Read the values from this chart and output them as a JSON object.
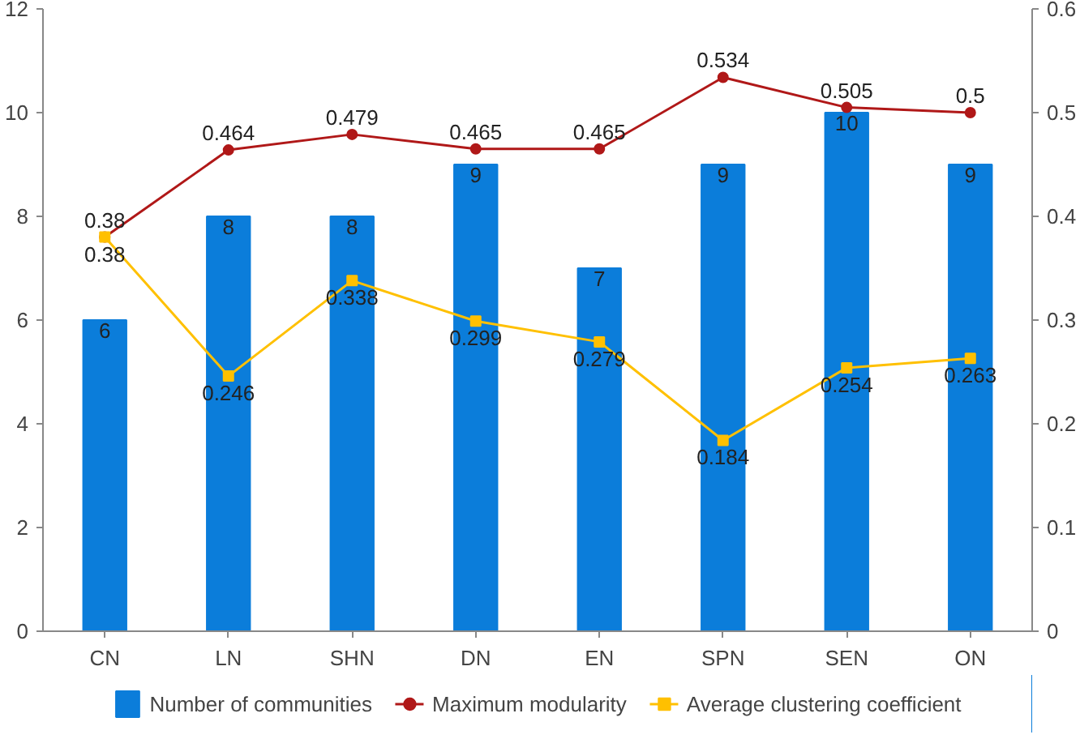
{
  "chart_data": {
    "type": "bar",
    "categories": [
      "CN",
      "LN",
      "SHN",
      "DN",
      "EN",
      "SPN",
      "SEN",
      "ON"
    ],
    "series": [
      {
        "name": "Number of communities",
        "color": "#0b7dda",
        "values": [
          6,
          8,
          8,
          9,
          7,
          9,
          10,
          9
        ]
      },
      {
        "name": "Maximum modularity",
        "type": "line",
        "axis": "y2",
        "color": "#b01818",
        "marker": "circle",
        "values": [
          0.38,
          0.464,
          0.479,
          0.465,
          0.465,
          0.534,
          0.505,
          0.5
        ]
      },
      {
        "name": "Average clustering coefficient",
        "type": "line",
        "axis": "y2",
        "color": "#ffc000",
        "marker": "square",
        "values": [
          0.38,
          0.246,
          0.338,
          0.299,
          0.279,
          0.184,
          0.254,
          0.263
        ]
      }
    ],
    "ylim": [
      0,
      12
    ],
    "yticks": [
      0,
      2,
      4,
      6,
      8,
      10,
      12
    ],
    "y2lim": [
      0,
      0.6
    ],
    "y2ticks": [
      0,
      0.1,
      0.2,
      0.3,
      0.4,
      0.5,
      0.6
    ],
    "data_labels": true,
    "legend": "bottom",
    "grid": false
  }
}
